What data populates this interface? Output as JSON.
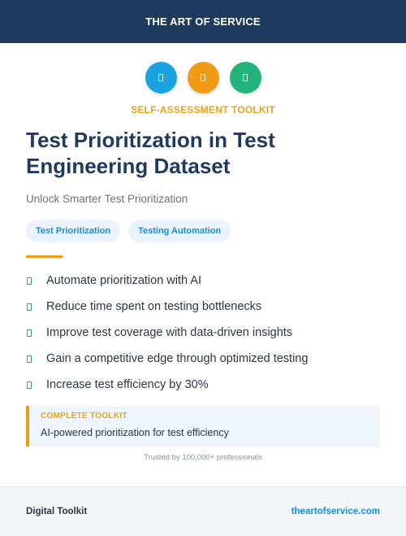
{
  "header": {
    "title": "THE ART OF SERVICE"
  },
  "icons": [
    {
      "name": "document-icon",
      "color": "#1aa3e0"
    },
    {
      "name": "document-icon",
      "color": "#ef9b16"
    },
    {
      "name": "document-icon",
      "color": "#24b37a"
    }
  ],
  "kicker": "SELF-ASSESSMENT TOOLKIT",
  "title": "Test Prioritization in Test Engineering Dataset",
  "subtitle": "Unlock Smarter Test Prioritization",
  "tags": [
    "Test Prioritization",
    "Testing Automation"
  ],
  "features": [
    "Automate prioritization with AI",
    "Reduce time spent on testing bottlenecks",
    "Improve test coverage with data-driven insights",
    "Gain a competitive edge through optimized testing",
    "Increase test efficiency by 30%"
  ],
  "callout": {
    "label": "COMPLETE TOOLKIT",
    "text": "AI-powered prioritization for test efficiency"
  },
  "trusted": "Trusted by 100,000+ professionals",
  "footer": {
    "left": "Digital Toolkit",
    "right": "theartofservice.com"
  },
  "colors": {
    "navy": "#1f3a5f",
    "orange": "#ef9b16",
    "blue": "#1aa3e0",
    "green": "#24b37a"
  }
}
